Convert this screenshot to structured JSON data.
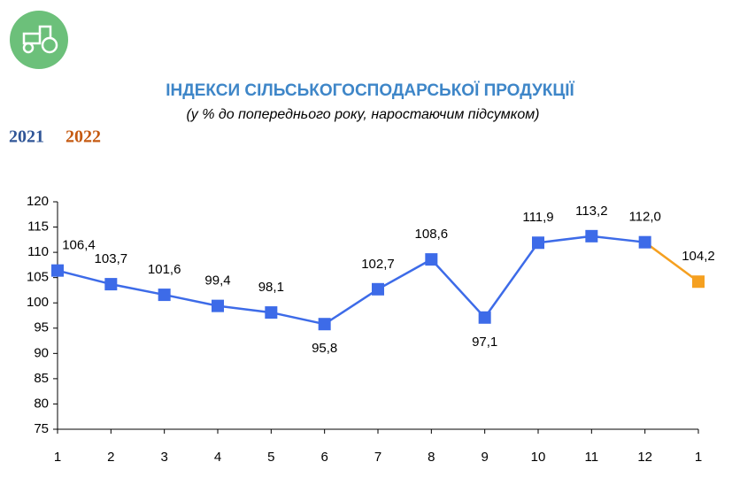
{
  "chart_data": {
    "type": "line",
    "title": "ІНДЕКСИ СІЛЬСЬКОГОСПОДАРСЬКОЇ ПРОДУКЦІЇ",
    "subtitle": "(у % до попереднього року, наростаючим підсумком)",
    "categories": [
      "1",
      "2",
      "3",
      "4",
      "5",
      "6",
      "7",
      "8",
      "9",
      "10",
      "11",
      "12",
      "1"
    ],
    "series": [
      {
        "name": "2021",
        "color": "#3d6be8",
        "legend_color": "#2f5597",
        "values": [
          106.4,
          103.7,
          101.6,
          99.4,
          98.1,
          95.8,
          102.7,
          108.6,
          97.1,
          111.9,
          113.2,
          112.0,
          null
        ],
        "value_labels": [
          "106,4",
          "103,7",
          "101,6",
          "99,4",
          "98,1",
          "95,8",
          "102,7",
          "108,6",
          "97,1",
          "111,9",
          "113,2",
          "112,0",
          null
        ]
      },
      {
        "name": "2022",
        "color": "#f5a020",
        "legend_color": "#c55a11",
        "values": [
          null,
          null,
          null,
          null,
          null,
          null,
          null,
          null,
          null,
          null,
          null,
          null,
          104.2
        ],
        "value_labels": [
          null,
          null,
          null,
          null,
          null,
          null,
          null,
          null,
          null,
          null,
          null,
          null,
          "104,2"
        ]
      }
    ],
    "ylim": [
      75,
      120
    ],
    "yticks": [
      75,
      80,
      85,
      90,
      95,
      100,
      105,
      110,
      115,
      120
    ],
    "grid": false
  }
}
